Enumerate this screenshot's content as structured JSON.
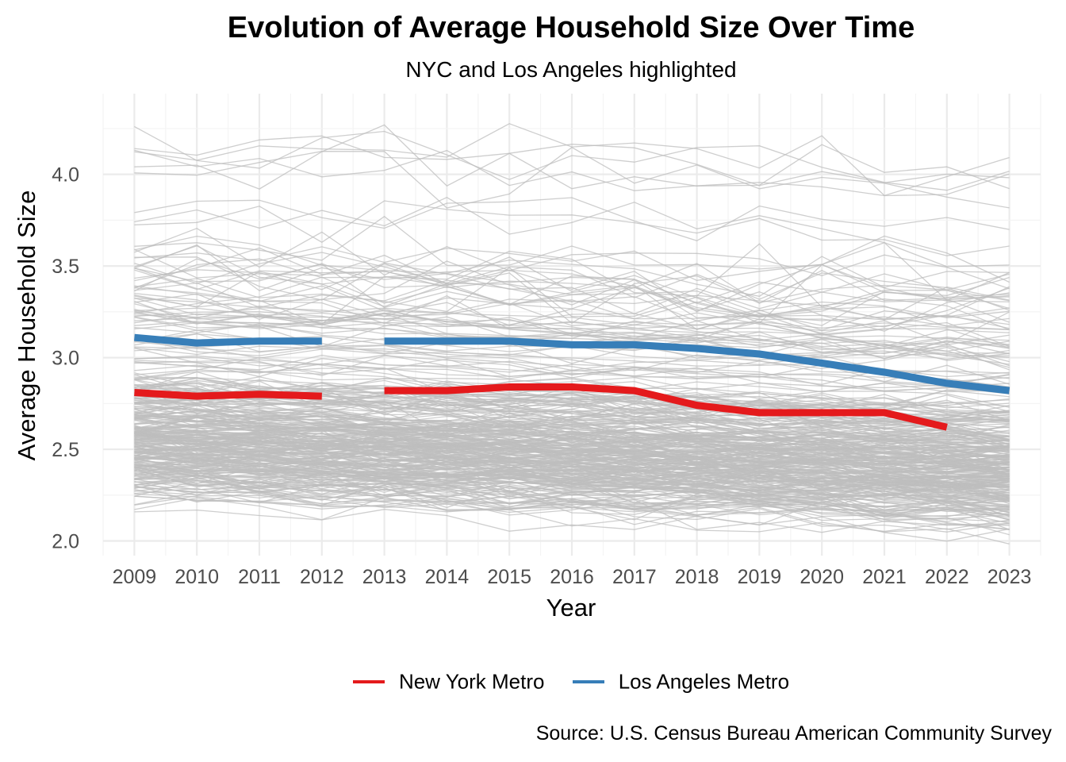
{
  "chart_data": {
    "type": "line",
    "title": "Evolution of Average Household Size Over Time",
    "subtitle": "NYC and Los Angeles highlighted",
    "xlabel": "Year",
    "ylabel": "Average Household Size",
    "source": "Source: U.S. Census Bureau American Community Survey",
    "x": [
      2009,
      2010,
      2011,
      2012,
      2013,
      2014,
      2015,
      2016,
      2017,
      2018,
      2019,
      2020,
      2021,
      2022,
      2023
    ],
    "xlim": [
      2008.5,
      2023.5
    ],
    "ylim": [
      1.92,
      4.44
    ],
    "yticks": [
      2.0,
      2.5,
      3.0,
      3.5,
      4.0
    ],
    "ytick_labels": [
      "2.0",
      "2.5",
      "3.0",
      "3.5",
      "4.0"
    ],
    "grid": true,
    "legend_position": "bottom",
    "series": [
      {
        "name": "New York Metro",
        "color": "#E41A1C",
        "values": [
          2.81,
          2.79,
          2.8,
          2.79,
          2.82,
          2.82,
          2.84,
          2.84,
          2.82,
          2.74,
          2.7,
          2.7,
          2.7,
          2.62,
          null
        ]
      },
      {
        "name": "Los Angeles Metro",
        "color": "#377EB8",
        "values": [
          3.11,
          3.08,
          3.09,
          3.09,
          3.09,
          3.09,
          3.09,
          3.07,
          3.07,
          3.05,
          3.02,
          2.97,
          2.92,
          2.86,
          2.82
        ]
      }
    ],
    "background_series_color": "#BEBEBE"
  }
}
